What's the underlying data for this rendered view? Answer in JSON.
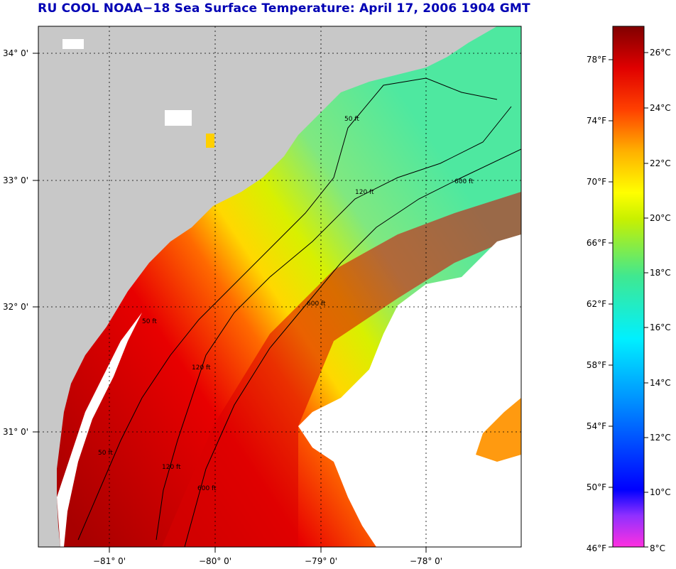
{
  "title": "RU COOL  NOAA−18  Sea Surface Temperature:  April 17, 2006 1904 GMT",
  "map": {
    "lat_labels": [
      "34° 0'",
      "33° 0'",
      "32° 0'",
      "31° 0'"
    ],
    "lon_labels": [
      "−81° 0'",
      "−80° 0'",
      "−79° 0'",
      "−78° 0'"
    ],
    "contour_labels": [
      "50 ft",
      "120 ft",
      "600 ft",
      "50 ft",
      "120 ft",
      "600 ft",
      "50 ft",
      "120 ft",
      "600 ft"
    ],
    "colors": {
      "land": "#c8c8c8",
      "cloud": "#ffffff",
      "warm": "#e00000",
      "frame": "#000000"
    }
  },
  "colorbar": {
    "fahrenheit_labels": [
      "78°F",
      "74°F",
      "70°F",
      "66°F",
      "62°F",
      "58°F",
      "54°F",
      "50°F",
      "46°F"
    ],
    "celsius_labels": [
      "26°C",
      "24°C",
      "22°C",
      "20°C",
      "18°C",
      "16°C",
      "14°C",
      "12°C",
      "10°C",
      "8°C"
    ]
  }
}
